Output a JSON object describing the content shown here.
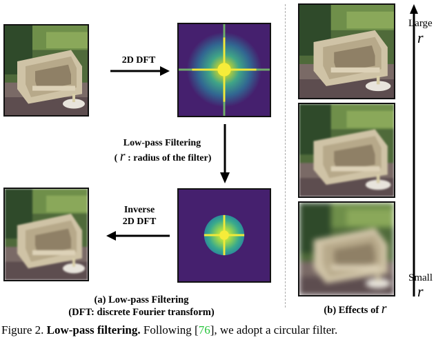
{
  "left_panel": {
    "arrow_dft_label": "2D DFT",
    "filter_label_line1": "Low-pass Filtering",
    "filter_label_line2_prefix": "(",
    "filter_label_symbol": "r",
    "filter_label_line2_suffix": ": radius of the filter)",
    "inverse_label_line1": "Inverse",
    "inverse_label_line2": "2D DFT",
    "subcaption_line1": "(a) Low-pass Filtering",
    "subcaption_line2": "(DFT: discrete Fourier transform)"
  },
  "right_panel": {
    "large_word": "Large",
    "large_symbol": "r",
    "small_word": "Small",
    "small_symbol": "r",
    "subcaption_text": "(b) Effects of",
    "subcaption_symbol": "r"
  },
  "figure_caption": {
    "prefix": "Figure 2.",
    "bold": "Low-pass filtering.",
    "text_before_ref": "Following [",
    "ref": "76",
    "text_after_ref": "], we adopt a circular filter."
  },
  "colors": {
    "spectrum_background": "#45206e",
    "spectrum_center": "#f0e93a",
    "citation": "#25c43a"
  }
}
